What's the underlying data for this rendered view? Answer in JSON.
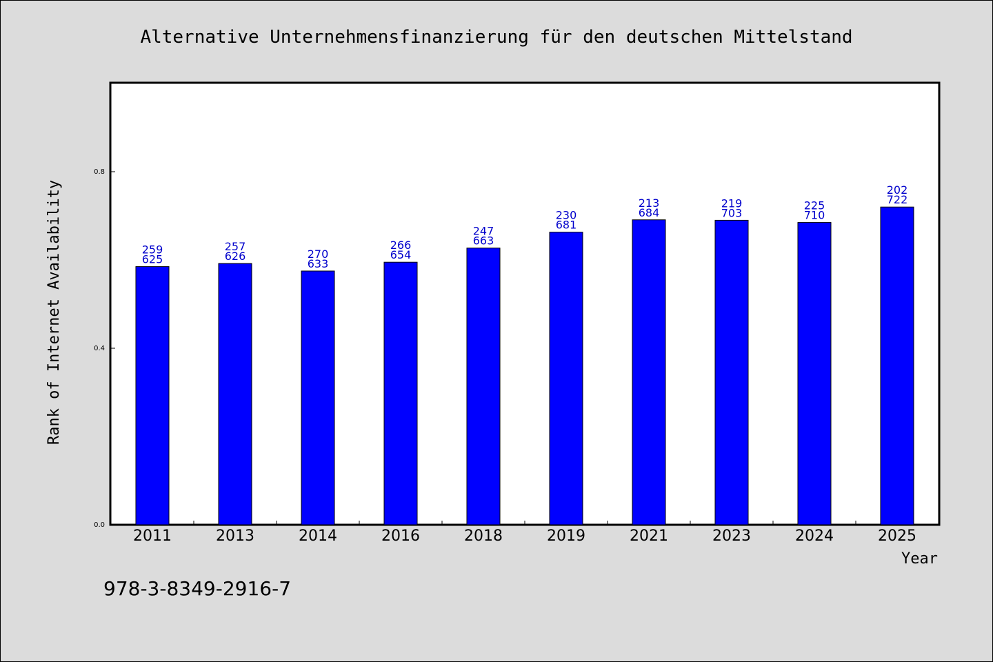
{
  "chart_data": {
    "type": "bar",
    "title": "Alternative Unternehmensfinanzierung für den deutschen Mittelstand",
    "xlabel": "Year",
    "ylabel": "Rank of Internet Availability",
    "categories": [
      "2011",
      "2013",
      "2014",
      "2016",
      "2018",
      "2019",
      "2021",
      "2023",
      "2024",
      "2025"
    ],
    "values": [
      0.585,
      0.592,
      0.575,
      0.595,
      0.627,
      0.663,
      0.691,
      0.69,
      0.685,
      0.72
    ],
    "bar_label_top": [
      "259",
      "257",
      "270",
      "266",
      "247",
      "230",
      "213",
      "219",
      "225",
      "202"
    ],
    "bar_label_bottom": [
      "625",
      "626",
      "633",
      "654",
      "663",
      "681",
      "684",
      "703",
      "710",
      "722"
    ],
    "yticks": [
      0.0,
      0.4,
      0.8
    ],
    "ytick_labels": [
      "0.0",
      "0.4",
      "0.8"
    ],
    "ylim": [
      0.0,
      1.0
    ],
    "grid": false,
    "colors": {
      "bar": "#0000ff",
      "label": "#0000cc",
      "background": "#dcdcdc",
      "plot_area": "#ffffff"
    }
  },
  "footer": {
    "isbn": "978-3-8349-2916-7"
  }
}
